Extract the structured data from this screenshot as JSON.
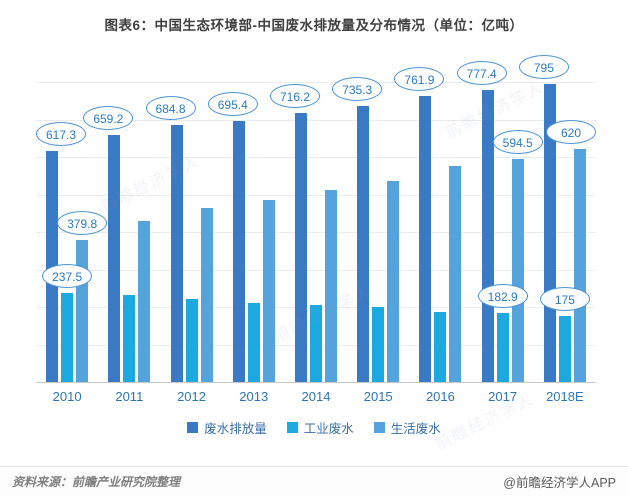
{
  "title": "图表6：中国生态环境部-中国废水排放量及分布情况（单位：亿吨）",
  "chart_data": {
    "type": "bar",
    "categories": [
      "2010",
      "2011",
      "2012",
      "2013",
      "2014",
      "2015",
      "2016",
      "2017",
      "2018E"
    ],
    "series": [
      {
        "name": "废水排放量",
        "color": "#3a79c4",
        "values": [
          617.3,
          659.2,
          684.8,
          695.4,
          716.2,
          735.3,
          761.9,
          777.4,
          795
        ],
        "labels": [
          "617.3",
          "659.2",
          "684.8",
          "695.4",
          "716.2",
          "735.3",
          "761.9",
          "777.4",
          "795"
        ]
      },
      {
        "name": "工业废水",
        "color": "#1ca9e0",
        "values": [
          237.5,
          231,
          222,
          210,
          205,
          200,
          187,
          182.9,
          175
        ],
        "labels": [
          "237.5",
          null,
          null,
          null,
          null,
          null,
          null,
          "182.9",
          "175"
        ]
      },
      {
        "name": "生活废水",
        "color": "#54a3dc",
        "values": [
          379.8,
          428,
          463,
          485,
          511,
          535,
          575,
          594.5,
          620
        ],
        "labels": [
          "379.8",
          null,
          null,
          null,
          null,
          null,
          null,
          "594.5",
          "620"
        ]
      }
    ],
    "ylim": [
      0,
      880
    ],
    "grid": true,
    "legend_position": "bottom",
    "xlabel": "",
    "ylabel": ""
  },
  "footer": {
    "source": "资料来源：前瞻产业研究院整理",
    "credit": "@前瞻经济学人APP"
  },
  "watermark": {
    "text": "前瞻经济学人"
  }
}
